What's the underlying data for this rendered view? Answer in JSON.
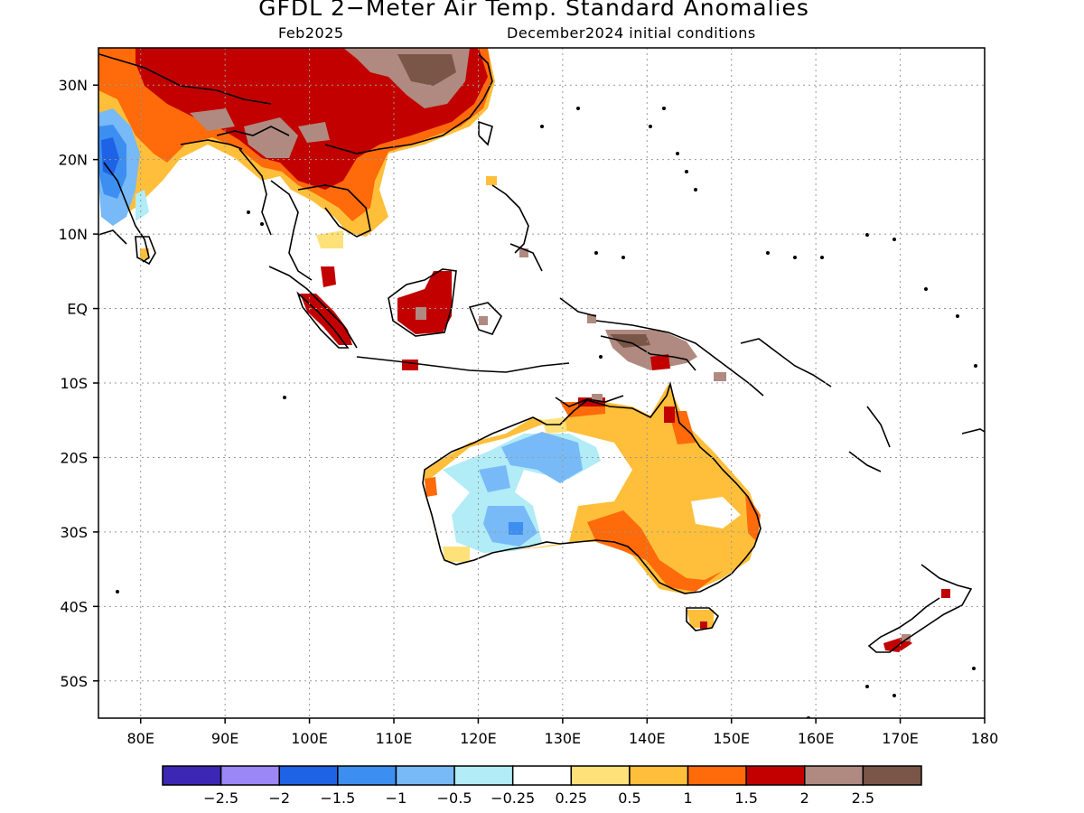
{
  "title": "GFDL 2−Meter Air Temp. Standard Anomalies",
  "subtitle_left": "Feb2025",
  "subtitle_right": "December2024 initial conditions",
  "lat_labels": [
    "30N",
    "20N",
    "10N",
    "EQ",
    "10S",
    "20S",
    "30S",
    "40S",
    "50S"
  ],
  "lat_values": [
    30,
    20,
    10,
    0,
    -10,
    -20,
    -30,
    -40,
    -50
  ],
  "lon_labels": [
    "80E",
    "90E",
    "100E",
    "110E",
    "120E",
    "130E",
    "140E",
    "150E",
    "160E",
    "170E",
    "180"
  ],
  "lon_values": [
    80,
    90,
    100,
    110,
    120,
    130,
    140,
    150,
    160,
    170,
    180
  ],
  "lon_range": [
    75,
    180
  ],
  "lat_range": [
    -55,
    35
  ],
  "colorbar": {
    "colors": [
      "#3b27b3",
      "#9b87f5",
      "#1e62e6",
      "#3c8ff0",
      "#78b9f7",
      "#b1ecf7",
      "#ffffff",
      "#ffe17a",
      "#ffbf3a",
      "#ff6a0a",
      "#c20000",
      "#b08a80",
      "#7a5648"
    ],
    "labels": [
      "−2.5",
      "−2",
      "−1.5",
      "−1",
      "−0.5",
      "−0.25",
      "0.25",
      "0.5",
      "1",
      "1.5",
      "2",
      "2.5"
    ]
  }
}
